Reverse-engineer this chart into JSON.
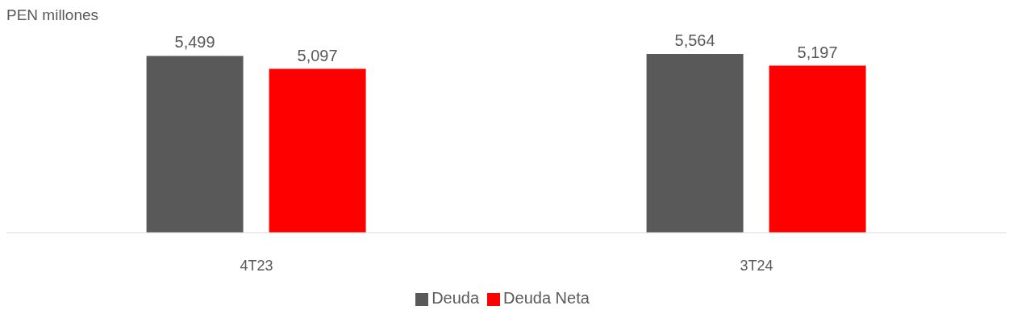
{
  "chart_data": {
    "type": "bar",
    "ylabel": "PEN millones",
    "categories": [
      "4T23",
      "3T24"
    ],
    "series": [
      {
        "name": "Deuda",
        "color": "#595959",
        "values": [
          5499,
          5564
        ],
        "value_labels": [
          "5,499",
          "5,564"
        ]
      },
      {
        "name": "Deuda Neta",
        "color": "#ff0000",
        "values": [
          5097,
          5197
        ],
        "value_labels": [
          "5,097",
          "5,197"
        ]
      }
    ],
    "legend": "bottom"
  }
}
